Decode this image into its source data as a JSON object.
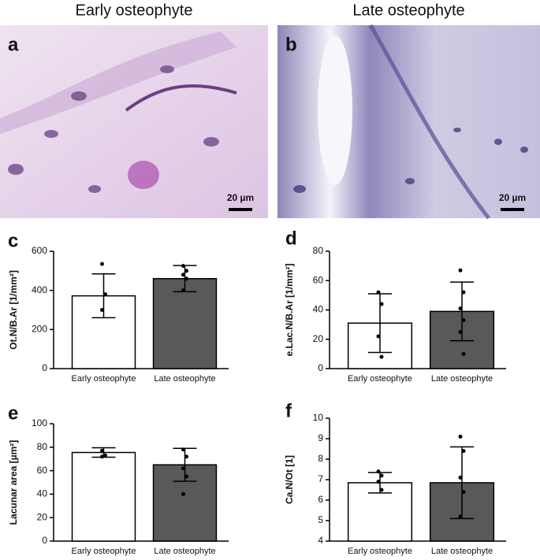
{
  "images": [
    {
      "title": "Early osteophyte",
      "label": "a",
      "scale": "20 µm"
    },
    {
      "title": "Late osteophyte",
      "label": "b",
      "scale": "20 µm"
    }
  ],
  "chart_data": [
    {
      "type": "bar",
      "label": "c",
      "ylabel": "Ot.N/B.Ar [1/mm²]",
      "categories": [
        "Early osteophyte",
        "Late osteophyte"
      ],
      "values": [
        372,
        460
      ],
      "errors": [
        112,
        67
      ],
      "colors": [
        "#ffffff",
        "#595959"
      ],
      "points": [
        [
          535,
          380,
          300
        ],
        [
          525,
          500,
          480,
          460,
          400
        ]
      ],
      "ylim": [
        0,
        600
      ],
      "yticks": [
        0,
        200,
        400,
        600
      ]
    },
    {
      "type": "bar",
      "label": "d",
      "ylabel": "e.Lac.N/B.Ar [1/mm²]",
      "categories": [
        "Early osteophyte",
        "Late osteophyte"
      ],
      "values": [
        31,
        39
      ],
      "errors": [
        20,
        20
      ],
      "colors": [
        "#ffffff",
        "#595959"
      ],
      "points": [
        [
          52,
          44,
          22,
          8
        ],
        [
          67,
          52,
          41,
          33,
          25,
          10
        ]
      ],
      "ylim": [
        0,
        80
      ],
      "yticks": [
        0,
        20,
        40,
        60,
        80
      ]
    },
    {
      "type": "bar",
      "label": "e",
      "ylabel": "Lacunar area [µm²]",
      "categories": [
        "Early osteophyte",
        "Late osteophyte"
      ],
      "values": [
        75.5,
        65
      ],
      "errors": [
        4,
        14
      ],
      "colors": [
        "#ffffff",
        "#595959"
      ],
      "points": [
        [
          77,
          73,
          72
        ],
        [
          78,
          72,
          62,
          55,
          40
        ]
      ],
      "ylim": [
        0,
        100
      ],
      "yticks": [
        0,
        20,
        40,
        60,
        80,
        100
      ]
    },
    {
      "type": "bar",
      "label": "f",
      "ylabel": "Ca.N/Ot [1]",
      "categories": [
        "Early osteophyte",
        "Late osteophyte"
      ],
      "values": [
        6.85,
        6.85
      ],
      "errors": [
        0.5,
        1.75
      ],
      "colors": [
        "#ffffff",
        "#595959"
      ],
      "points": [
        [
          7.4,
          7.2,
          6.9,
          6.5
        ],
        [
          9.1,
          8.4,
          7.1,
          6.4,
          5.2
        ]
      ],
      "ylim": [
        4,
        10
      ],
      "yticks": [
        4,
        5,
        6,
        7,
        8,
        9,
        10
      ]
    }
  ]
}
